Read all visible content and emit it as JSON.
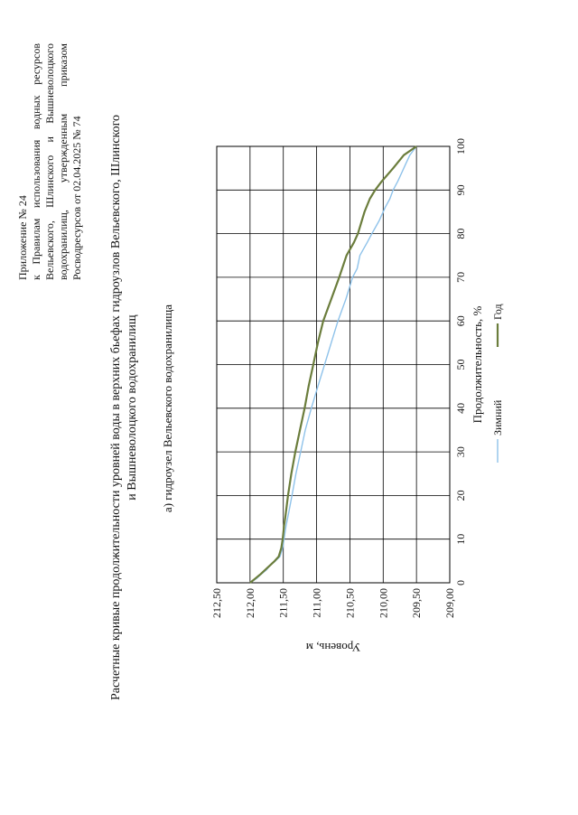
{
  "appendix": {
    "line1": "Приложение № 24",
    "line2": "к Правилам использования водных ресурсов",
    "line3": "Вельевского, Шлинского и Вышневолоцкого",
    "line4": "водохранилищ, утвержденным приказом",
    "line5": "Росводресурсов от 02.04.2025 № 74"
  },
  "title": {
    "line1": "Расчетные кривые продолжительности уровней воды в верхних бьефах гидроузлов Вельевского, Шлинского",
    "line2": "и Вышневолоцкого водохранилищ"
  },
  "subtitle": "а) гидроузел Вельевского водохранилища",
  "colors": {
    "winter": "#8ec2ea",
    "year": "#6b7d3c",
    "grid": "#000000"
  },
  "chart_data": {
    "type": "line",
    "title": "а) гидроузел Вельевского водохранилища",
    "xlabel": "Продолжительность, %",
    "ylabel": "Уровень, м",
    "xlim": [
      0,
      100
    ],
    "ylim": [
      209.0,
      212.5
    ],
    "x_ticks": [
      "0",
      "10",
      "20",
      "30",
      "40",
      "50",
      "60",
      "70",
      "80",
      "90",
      "100"
    ],
    "y_ticks": [
      "209,00",
      "209,50",
      "210,00",
      "210,50",
      "211,00",
      "211,50",
      "212,00",
      "212,50"
    ],
    "grid": true,
    "legend_position": "bottom",
    "series": [
      {
        "name": "Зимний",
        "x": [
          0,
          1,
          2,
          3,
          4,
          5,
          6,
          8,
          10,
          13,
          16,
          20,
          25,
          30,
          35,
          40,
          45,
          50,
          55,
          60,
          65,
          70,
          72,
          75,
          78,
          80,
          83,
          86,
          88,
          90,
          92,
          94,
          96,
          98,
          100
        ],
        "y": [
          212.0,
          211.9,
          211.83,
          211.75,
          211.7,
          211.62,
          211.55,
          211.51,
          211.49,
          211.46,
          211.42,
          211.37,
          211.31,
          211.24,
          211.17,
          211.08,
          210.98,
          210.88,
          210.78,
          210.68,
          210.56,
          210.46,
          210.39,
          210.35,
          210.24,
          210.17,
          210.06,
          209.97,
          209.9,
          209.85,
          209.78,
          209.72,
          209.66,
          209.6,
          209.5
        ]
      },
      {
        "name": "Год",
        "x": [
          0,
          1,
          2,
          3,
          4,
          5,
          6,
          8,
          10,
          13,
          15,
          20,
          25,
          30,
          35,
          40,
          45,
          50,
          55,
          60,
          65,
          70,
          75,
          78,
          80,
          85,
          88,
          90,
          92,
          95,
          98,
          100
        ],
        "y": [
          212.0,
          211.92,
          211.84,
          211.77,
          211.7,
          211.63,
          211.57,
          211.53,
          211.51,
          211.49,
          211.47,
          211.43,
          211.38,
          211.32,
          211.25,
          211.18,
          211.12,
          211.05,
          210.98,
          210.9,
          210.78,
          210.66,
          210.55,
          210.44,
          210.38,
          210.28,
          210.2,
          210.12,
          210.02,
          209.85,
          209.69,
          209.5
        ]
      }
    ]
  }
}
